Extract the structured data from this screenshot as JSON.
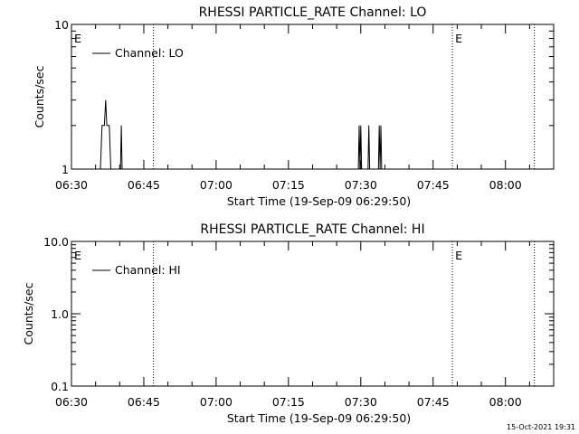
{
  "chart_data": [
    {
      "type": "line",
      "title": "RHESSI PARTICLE_RATE Channel: LO",
      "xlabel": "Start Time (19-Sep-09 06:29:50)",
      "ylabel": "Counts/sec",
      "y_scale": "log",
      "ylim": [
        1,
        10
      ],
      "xlim": [
        "06:30",
        "08:10"
      ],
      "x_ticks": [
        "06:30",
        "06:45",
        "07:00",
        "07:15",
        "07:30",
        "07:45",
        "08:00"
      ],
      "y_ticks": [
        "1",
        "10"
      ],
      "legend": {
        "label": "Channel: LO",
        "placement": "top-left"
      },
      "eclipse_markers": [
        {
          "label": "E",
          "time": "06:30"
        },
        {
          "label": "E",
          "time": "07:49"
        }
      ],
      "dotted_lines": [
        "06:47",
        "07:49",
        "08:06"
      ],
      "grid": false,
      "series": [
        {
          "name": "Channel: LO",
          "points": [
            [
              "06:36:00",
              1
            ],
            [
              "06:36:20",
              2
            ],
            [
              "06:36:50",
              2
            ],
            [
              "06:37:05",
              3
            ],
            [
              "06:37:20",
              2
            ],
            [
              "06:37:50",
              2
            ],
            [
              "06:38:10",
              1
            ],
            [
              "06:40:10",
              1
            ],
            [
              "06:40:20",
              2
            ],
            [
              "06:40:30",
              1
            ],
            [
              "07:29:30",
              1
            ],
            [
              "07:29:40",
              2
            ],
            [
              "07:29:50",
              1
            ],
            [
              "07:30:00",
              2
            ],
            [
              "07:30:10",
              1
            ],
            [
              "07:31:30",
              1
            ],
            [
              "07:31:40",
              2
            ],
            [
              "07:31:50",
              1
            ],
            [
              "07:33:40",
              1
            ],
            [
              "07:33:50",
              2
            ],
            [
              "07:34:00",
              1
            ],
            [
              "07:34:10",
              2
            ],
            [
              "07:34:20",
              1
            ]
          ]
        }
      ]
    },
    {
      "type": "line",
      "title": "RHESSI PARTICLE_RATE Channel: HI",
      "xlabel": "Start Time (19-Sep-09 06:29:50)",
      "ylabel": "Counts/sec",
      "y_scale": "log",
      "ylim": [
        0.1,
        10
      ],
      "xlim": [
        "06:30",
        "08:10"
      ],
      "x_ticks": [
        "06:30",
        "06:45",
        "07:00",
        "07:15",
        "07:30",
        "07:45",
        "08:00"
      ],
      "y_ticks": [
        "0.1",
        "1.0",
        "10.0"
      ],
      "legend": {
        "label": "Channel: HI",
        "placement": "top-left"
      },
      "eclipse_markers": [
        {
          "label": "E",
          "time": "06:30"
        },
        {
          "label": "E",
          "time": "07:49"
        }
      ],
      "dotted_lines": [
        "06:47",
        "07:49",
        "08:06"
      ],
      "grid": false,
      "series": [
        {
          "name": "Channel: HI",
          "points": []
        }
      ]
    }
  ],
  "footer": {
    "timestamp": "15-Oct-2021 19:31"
  },
  "colors": {
    "background": "#ffffff",
    "foreground": "#000000"
  }
}
